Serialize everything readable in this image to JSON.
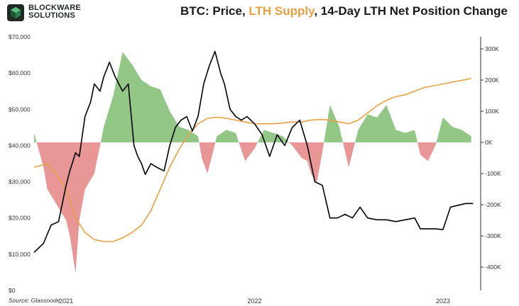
{
  "header": {
    "logo_line1": "BLOCKWARE",
    "logo_line2": "SOLUTIONS",
    "title_prefix": "BTC: Price, ",
    "title_accent": "LTH Supply",
    "title_suffix": ", 14-Day LTH Net Position Change"
  },
  "footer": {
    "source": "Source: Glassnode"
  },
  "colors": {
    "price": "#000000",
    "lth_supply": "#e8a040",
    "positive_fill": "#8cc47f",
    "negative_fill": "#e89090"
  },
  "chart_data": {
    "type": "line",
    "title": "BTC: Price, LTH Supply, 14-Day LTH Net Position Change",
    "left_axis": {
      "min": 0,
      "max": 70000,
      "ticks": [
        "$0",
        "$10,000",
        "$20,000",
        "$30,000",
        "$40,000",
        "$50,000",
        "$60,000",
        "$70,000"
      ]
    },
    "right_axis": {
      "min": -500000,
      "max": 300000,
      "ticks": [
        "300K",
        "200K",
        "100K",
        "0K",
        "-100K",
        "-200K",
        "-300K",
        "-400K"
      ]
    },
    "x_ticks": [
      "2021",
      "2022",
      "2023"
    ],
    "x_range": [
      2020.83,
      2023.2
    ],
    "series": [
      {
        "name": "BTC Price",
        "axis": "left",
        "x": [
          2020.83,
          2020.88,
          2020.92,
          2020.96,
          2021.0,
          2021.02,
          2021.05,
          2021.07,
          2021.1,
          2021.13,
          2021.15,
          2021.18,
          2021.2,
          2021.23,
          2021.26,
          2021.3,
          2021.33,
          2021.36,
          2021.38,
          2021.4,
          2021.42,
          2021.45,
          2021.48,
          2021.52,
          2021.55,
          2021.58,
          2021.61,
          2021.64,
          2021.67,
          2021.7,
          2021.73,
          2021.76,
          2021.79,
          2021.82,
          2021.84,
          2021.87,
          2021.9,
          2021.93,
          2021.96,
          2022.0,
          2022.04,
          2022.08,
          2022.12,
          2022.16,
          2022.2,
          2022.24,
          2022.28,
          2022.32,
          2022.36,
          2022.4,
          2022.44,
          2022.48,
          2022.52,
          2022.56,
          2022.6,
          2022.65,
          2022.7,
          2022.75,
          2022.8,
          2022.85,
          2022.88,
          2022.92,
          2022.96,
          2023.0,
          2023.04,
          2023.08,
          2023.12,
          2023.16
        ],
        "values": [
          10500,
          13000,
          18000,
          19000,
          29000,
          33000,
          38000,
          37000,
          48000,
          52000,
          57000,
          55000,
          59000,
          63000,
          59000,
          55000,
          57000,
          40000,
          37000,
          35000,
          32000,
          35000,
          34000,
          33000,
          40000,
          45000,
          47000,
          48000,
          44000,
          48000,
          57000,
          62000,
          66000,
          60000,
          57000,
          50000,
          48000,
          47000,
          48000,
          46000,
          43000,
          37000,
          43000,
          40000,
          45000,
          47000,
          40000,
          30000,
          29000,
          20000,
          20000,
          21000,
          20000,
          23000,
          20000,
          19500,
          19500,
          19000,
          19500,
          20000,
          17000,
          17000,
          17000,
          16800,
          23000,
          23500,
          24000,
          24000
        ]
      },
      {
        "name": "LTH Supply",
        "axis": "left",
        "x": [
          2020.83,
          2020.9,
          2020.95,
          2021.0,
          2021.05,
          2021.1,
          2021.15,
          2021.2,
          2021.25,
          2021.3,
          2021.35,
          2021.4,
          2021.45,
          2021.5,
          2021.55,
          2021.6,
          2021.65,
          2021.7,
          2021.75,
          2021.8,
          2021.85,
          2021.9,
          2021.95,
          2022.0,
          2022.05,
          2022.1,
          2022.15,
          2022.2,
          2022.25,
          2022.3,
          2022.35,
          2022.4,
          2022.45,
          2022.5,
          2022.55,
          2022.6,
          2022.65,
          2022.7,
          2022.75,
          2022.8,
          2022.85,
          2022.9,
          2022.95,
          2023.0,
          2023.05,
          2023.1,
          2023.15
        ],
        "values": [
          34000,
          35000,
          32000,
          28000,
          20000,
          16000,
          14000,
          13500,
          13500,
          14500,
          16000,
          18000,
          22000,
          28000,
          34000,
          39000,
          43000,
          46000,
          47500,
          47800,
          47500,
          47000,
          46500,
          46000,
          46000,
          46000,
          46200,
          46500,
          46500,
          47000,
          47200,
          47000,
          46500,
          46000,
          47000,
          49000,
          51000,
          52500,
          53500,
          54000,
          55000,
          56000,
          56500,
          57000,
          57500,
          58000,
          58500
        ]
      },
      {
        "name": "14-Day LTH Net Position Change",
        "axis": "right",
        "x": [
          2020.83,
          2020.88,
          2020.9,
          2020.95,
          2021.0,
          2021.02,
          2021.05,
          2021.07,
          2021.1,
          2021.15,
          2021.2,
          2021.25,
          2021.3,
          2021.35,
          2021.4,
          2021.45,
          2021.5,
          2021.55,
          2021.6,
          2021.65,
          2021.7,
          2021.72,
          2021.75,
          2021.78,
          2021.8,
          2021.85,
          2021.9,
          2021.95,
          2022.0,
          2022.05,
          2022.1,
          2022.15,
          2022.2,
          2022.25,
          2022.28,
          2022.3,
          2022.33,
          2022.36,
          2022.4,
          2022.45,
          2022.5,
          2022.55,
          2022.6,
          2022.65,
          2022.7,
          2022.75,
          2022.8,
          2022.85,
          2022.88,
          2022.92,
          2022.96,
          2023.0,
          2023.05,
          2023.1,
          2023.15
        ],
        "values": [
          30000,
          -80000,
          -150000,
          -200000,
          -250000,
          -300000,
          -420000,
          -250000,
          -150000,
          -100000,
          50000,
          150000,
          290000,
          250000,
          200000,
          180000,
          170000,
          100000,
          50000,
          40000,
          20000,
          -50000,
          -100000,
          -30000,
          20000,
          40000,
          30000,
          -60000,
          -20000,
          40000,
          30000,
          20000,
          -10000,
          -50000,
          -60000,
          -100000,
          -130000,
          -30000,
          120000,
          50000,
          -80000,
          40000,
          90000,
          80000,
          120000,
          40000,
          30000,
          40000,
          -40000,
          -60000,
          -10000,
          80000,
          50000,
          40000,
          20000
        ]
      }
    ]
  }
}
